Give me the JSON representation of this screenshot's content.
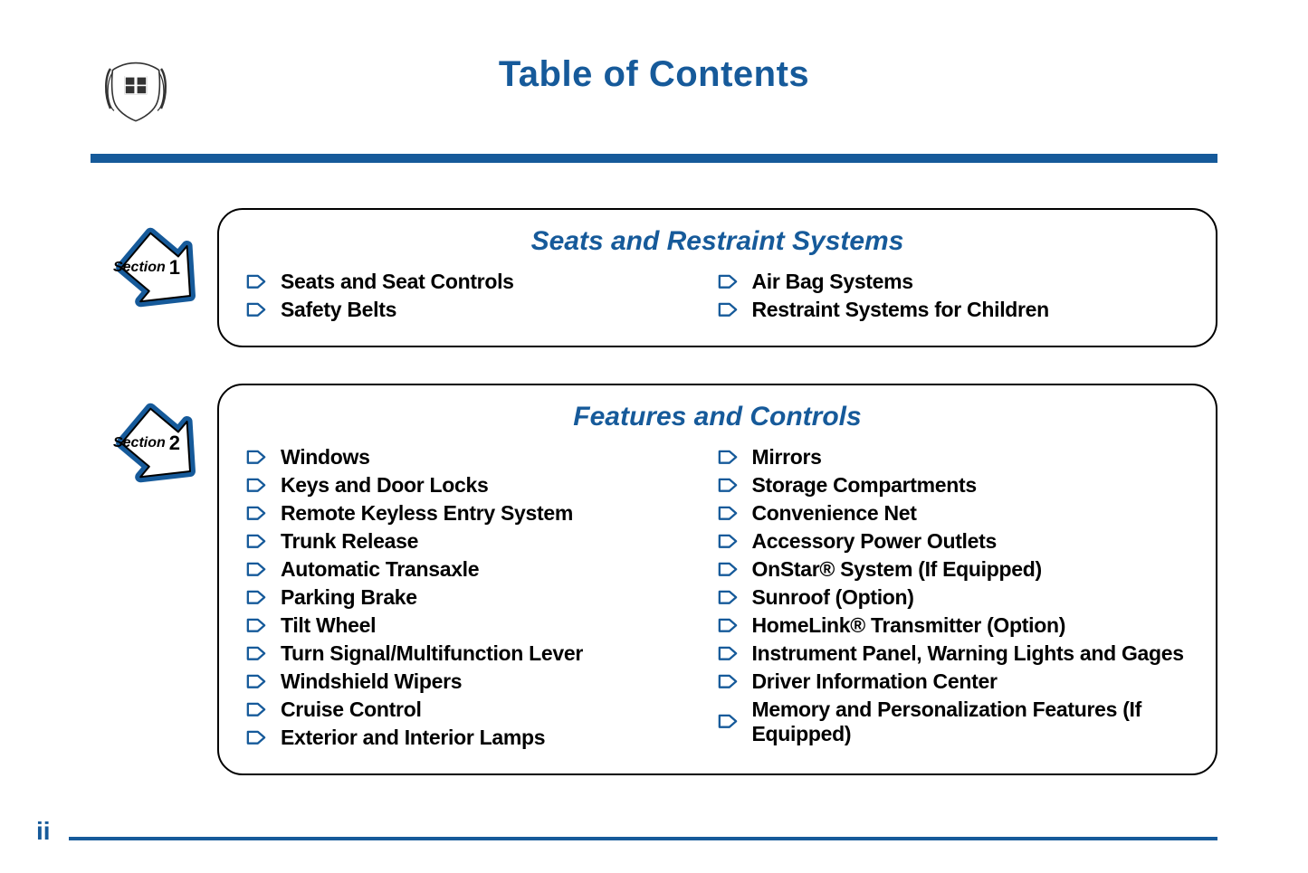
{
  "colors": {
    "brand": "#165a9a",
    "text": "#000000",
    "bg": "#ffffff"
  },
  "page_title": "Table of Contents",
  "page_number": "ii",
  "section_label": "Section",
  "sections": [
    {
      "number": "1",
      "title": "Seats and Restraint Systems",
      "left": [
        "Seats and Seat Controls",
        "Safety Belts"
      ],
      "right": [
        "Air Bag Systems",
        "Restraint Systems for Children"
      ]
    },
    {
      "number": "2",
      "title": "Features and Controls",
      "left": [
        "Windows",
        "Keys and Door Locks",
        "Remote Keyless Entry System",
        "Trunk Release",
        "Automatic Transaxle",
        "Parking Brake",
        "Tilt Wheel",
        "Turn Signal/Multifunction Lever",
        "Windshield Wipers",
        "Cruise Control",
        "Exterior and Interior Lamps"
      ],
      "right": [
        "Mirrors",
        "Storage Compartments",
        "Convenience Net",
        "Accessory Power Outlets",
        "OnStar® System (If Equipped)",
        "Sunroof (Option)",
        "HomeLink® Transmitter (Option)",
        "Instrument Panel, Warning Lights and Gages",
        "Driver Information Center",
        "Memory and Personalization Features (If Equipped)"
      ]
    }
  ]
}
